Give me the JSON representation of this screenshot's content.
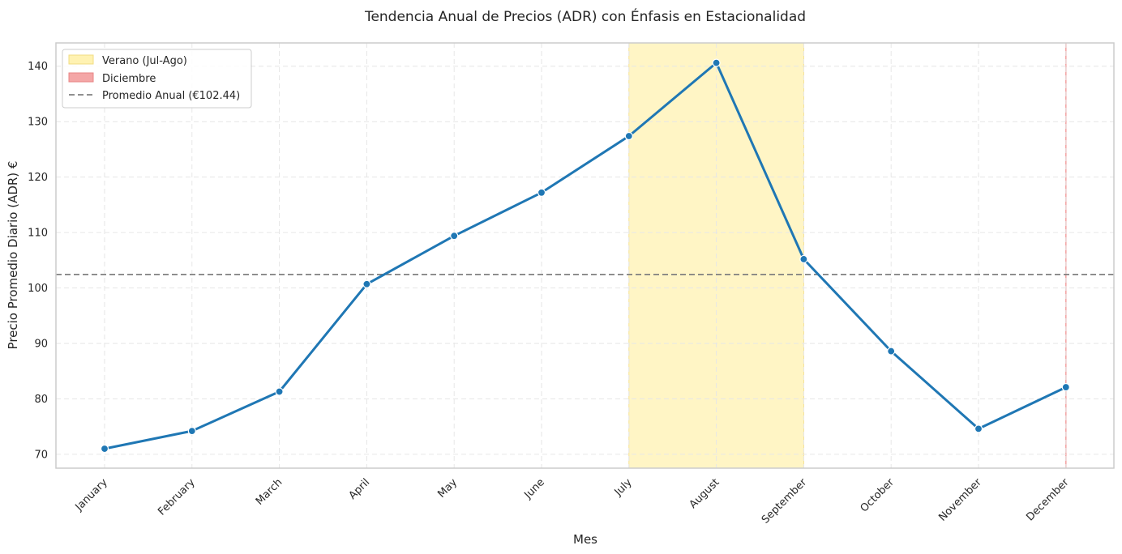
{
  "chart_data": {
    "type": "line",
    "title": "Tendencia Anual de Precios (ADR) con Énfasis en Estacionalidad",
    "xlabel": "Mes",
    "ylabel": "Precio Promedio Diario (ADR) €",
    "categories": [
      "January",
      "February",
      "March",
      "April",
      "May",
      "June",
      "July",
      "August",
      "September",
      "October",
      "November",
      "December"
    ],
    "series": [
      {
        "values": [
          71.0,
          74.2,
          81.3,
          100.7,
          109.4,
          117.2,
          127.4,
          140.6,
          105.2,
          88.6,
          74.6,
          82.1
        ],
        "color": "#1f77b4"
      }
    ],
    "ylim": [
      67.5,
      144.2
    ],
    "yticks": [
      70,
      80,
      90,
      100,
      110,
      120,
      130,
      140
    ],
    "grid": true,
    "reference_line": {
      "value": 102.44,
      "label": "Promedio Anual (€102.44)",
      "color": "#808080",
      "style": "dashed"
    },
    "highlights": [
      {
        "label": "Verano (Jul-Ago)",
        "start": "July",
        "end": "September",
        "color": "#fff2b2"
      },
      {
        "label": "Diciembre",
        "start": "December",
        "end": "December",
        "color": "#f4a6a6"
      }
    ],
    "legend": {
      "placement": "top-left",
      "entries": [
        "Verano (Jul-Ago)",
        "Diciembre",
        "Promedio Anual (€102.44)"
      ]
    }
  }
}
